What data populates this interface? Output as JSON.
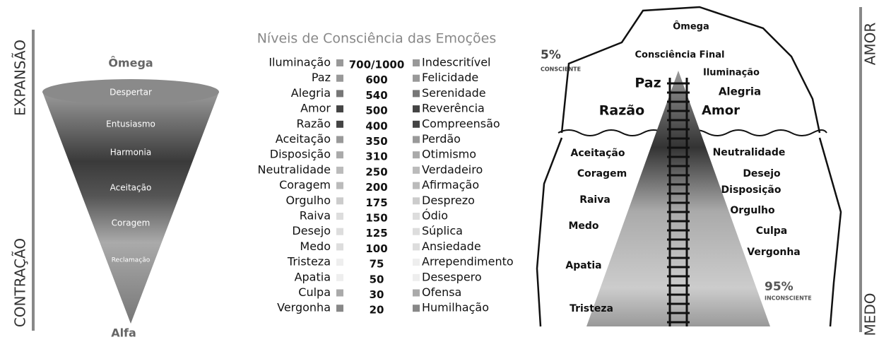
{
  "cone": {
    "top": "Ômega",
    "bottom": "Alfa",
    "expansion": "EXPANSÃO",
    "contraction": "CONTRAÇÃO",
    "levels": [
      "Despertar",
      "Entusiasmo",
      "Harmonia",
      "Aceitação",
      "Coragem",
      "Reclamação"
    ]
  },
  "table": {
    "title": "Níveis de Consciência das Emoções",
    "rows": [
      [
        "Iluminação",
        "700/1000",
        "Indescritível"
      ],
      [
        "Paz",
        600,
        "Felicidade"
      ],
      [
        "Alegria",
        540,
        "Serenidade"
      ],
      [
        "Amor",
        500,
        "Reverência"
      ],
      [
        "Razão",
        400,
        "Compreensão"
      ],
      [
        "Aceitação",
        350,
        "Perdão"
      ],
      [
        "Disposição",
        310,
        "Otimismo"
      ],
      [
        "Neutralidade",
        250,
        "Verdadeiro"
      ],
      [
        "Coragem",
        200,
        "Afirmação"
      ],
      [
        "Orgulho",
        175,
        "Desprezo"
      ],
      [
        "Raiva",
        150,
        "Ódio"
      ],
      [
        "Desejo",
        125,
        "Súplica"
      ],
      [
        "Medo",
        100,
        "Ansiedade"
      ],
      [
        "Tristeza",
        75,
        "Arrependimento"
      ],
      [
        "Apatia",
        50,
        "Desespero"
      ],
      [
        "Culpa",
        30,
        "Ofensa"
      ],
      [
        "Vergonha",
        20,
        "Humilhação"
      ]
    ]
  },
  "iceberg": {
    "labels": [
      "Ômega",
      "Consciência Final",
      "Iluminação",
      "Paz",
      "Alegria",
      "Razão",
      "Amor",
      "Aceitação",
      "Neutralidade",
      "Coragem",
      "Desejo",
      "Disposição",
      "Raiva",
      "Orgulho",
      "Medo",
      "Culpa",
      "Vergonha",
      "Apatia",
      "Tristeza"
    ],
    "conscious": {
      "percent": "5%",
      "label": "CONSCIENTE"
    },
    "unconscious": {
      "percent": "95%",
      "label": "INCONSCIENTE"
    },
    "love": "AMOR",
    "fear": "MEDO"
  }
}
